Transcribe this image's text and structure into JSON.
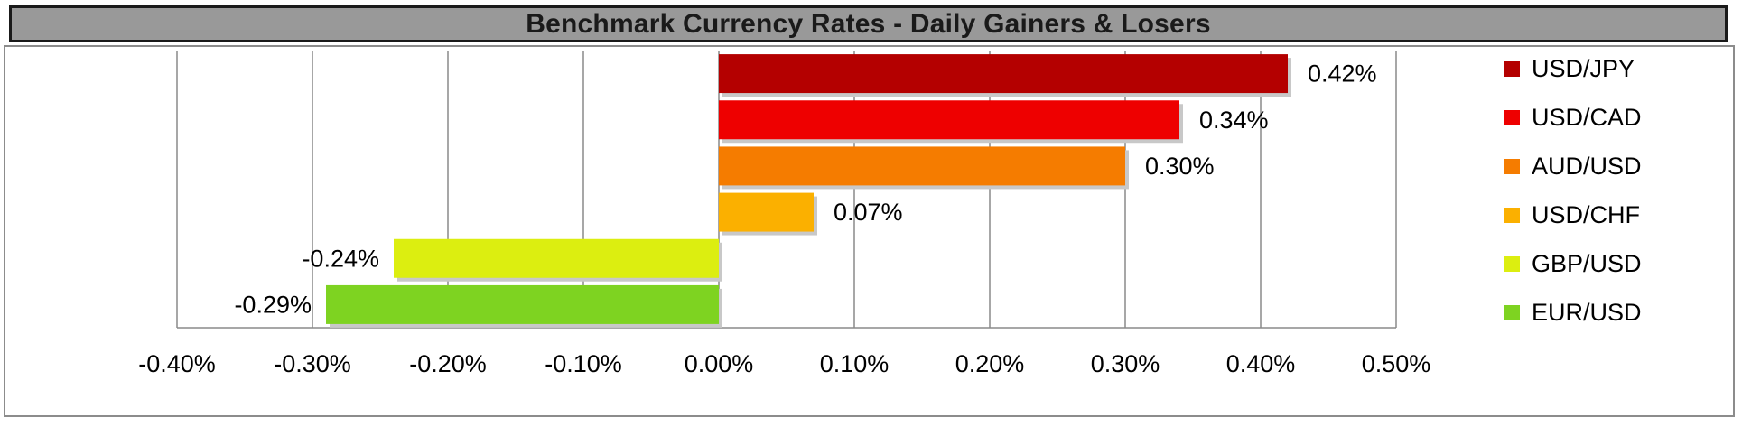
{
  "chart_data": {
    "type": "bar",
    "orientation": "horizontal",
    "title": "Benchmark Currency Rates - Daily Gainers & Losers",
    "categories": [
      "USD/JPY",
      "USD/CAD",
      "AUD/USD",
      "USD/CHF",
      "GBP/USD",
      "EUR/USD"
    ],
    "values": [
      0.42,
      0.34,
      0.3,
      0.07,
      -0.24,
      -0.29
    ],
    "value_labels": [
      "0.42%",
      "0.34%",
      "0.30%",
      "0.07%",
      "-0.24%",
      "-0.29%"
    ],
    "colors": [
      "#b40000",
      "#ee0000",
      "#f57c00",
      "#fbb000",
      "#dcee10",
      "#7ed321"
    ],
    "xlim": [
      -0.4,
      0.5
    ],
    "x_ticks": [
      -0.4,
      -0.3,
      -0.2,
      -0.1,
      0.0,
      0.1,
      0.2,
      0.3,
      0.4,
      0.5
    ],
    "x_tick_labels": [
      "-0.40%",
      "-0.30%",
      "-0.20%",
      "-0.10%",
      "0.00%",
      "0.10%",
      "0.20%",
      "0.30%",
      "0.40%",
      "0.50%"
    ],
    "grid": "vertical",
    "legend_position": "right",
    "xlabel": "",
    "ylabel": ""
  }
}
